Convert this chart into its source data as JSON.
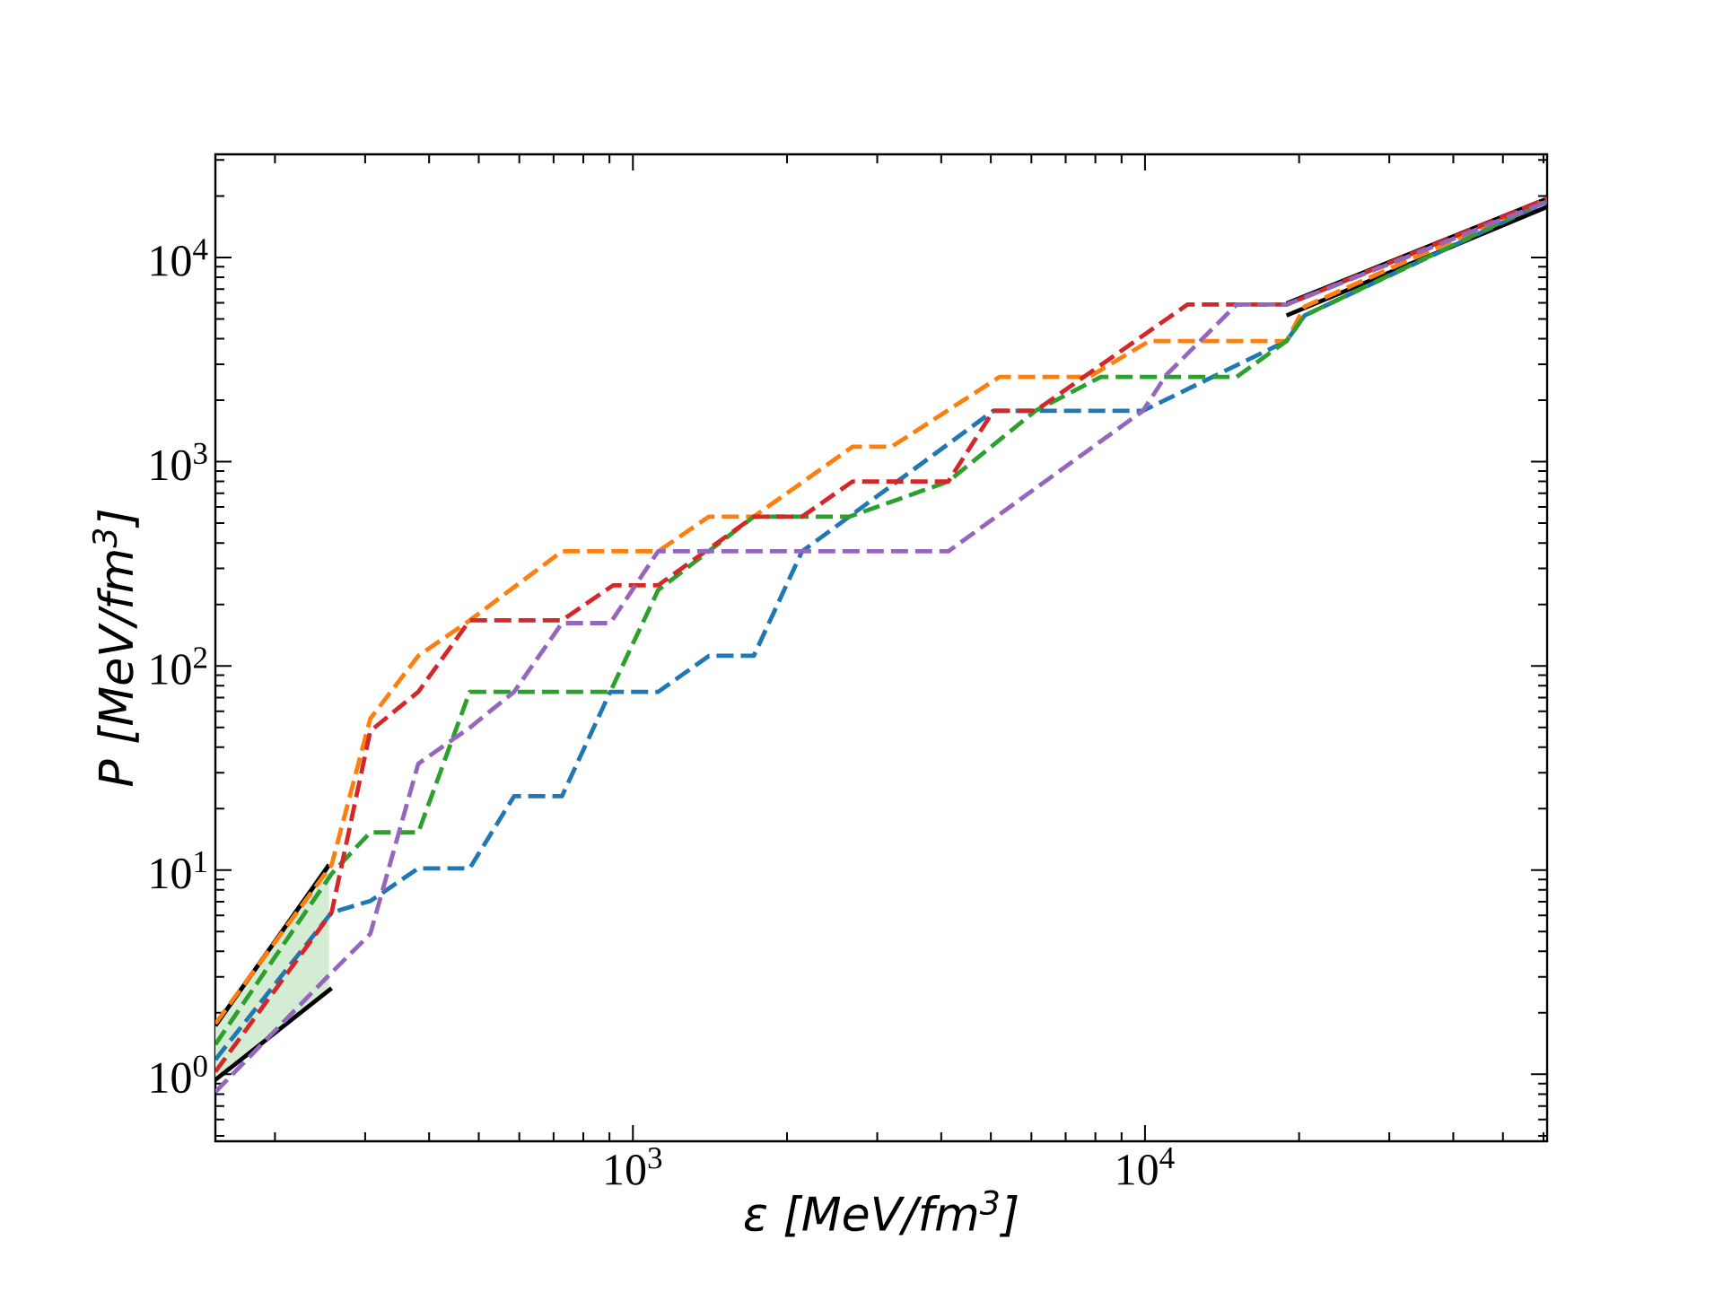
{
  "chart_data": {
    "type": "line",
    "xlabel": "ε [MeV/fm$^{3}$]",
    "ylabel": "P [MeV/fm$^{3}$]",
    "log": "xy",
    "grid": false,
    "marker": "none",
    "xlim": [
      153,
      61000
    ],
    "ylim": [
      0.47,
      32000
    ],
    "xticks": [
      {
        "value": 1000,
        "label": "10$^{3}$"
      },
      {
        "value": 10000,
        "label": "10$^{4}$"
      }
    ],
    "yticks": [
      {
        "value": 1,
        "label": "10$^{0}$"
      },
      {
        "value": 10,
        "label": "10$^{1}$"
      },
      {
        "value": 100,
        "label": "10$^{2}$"
      },
      {
        "value": 1000,
        "label": "10$^{3}$"
      },
      {
        "value": 10000,
        "label": "10$^{4}$"
      }
    ],
    "series": [
      {
        "color": "#000000",
        "line_style": "solid",
        "x": [
          153,
          255,
          1000,
          18900,
          61000
        ],
        "values": [
          1.73,
          10.6,
          null,
          5960,
          19400
        ],
        "lower": [
          0.94,
          2.64,
          null,
          null,
          null
        ],
        "upper": [
          1.73,
          10.6,
          null,
          null,
          null
        ]
      },
      {
        "color": "#000000",
        "line_style": "solid",
        "x": [
          153,
          258,
          1000,
          18900,
          61000
        ],
        "values": [
          0.94,
          2.64,
          null,
          5200,
          17700
        ]
      },
      {
        "color": "#1f77b4",
        "line_style": "dashed",
        "x": [
          153,
          258,
          307,
          381,
          480,
          586,
          727,
          903,
          1120,
          1408,
          1722,
          2140,
          5060,
          9910,
          18900,
          20500,
          61000
        ],
        "values": [
          1.18,
          6.2,
          7.06,
          10.2,
          10.2,
          23,
          23,
          74.6,
          74.6,
          112,
          112,
          364,
          1775,
          1775,
          3900,
          5200,
          18800
        ]
      },
      {
        "color": "#ff7f0e",
        "line_style": "dashed",
        "x": [
          153,
          258,
          307,
          381,
          480,
          727,
          1120,
          1408,
          1722,
          2685,
          3200,
          5200,
          7780,
          10200,
          18900,
          20500,
          61000
        ],
        "values": [
          1.77,
          10.6,
          55.1,
          112,
          167,
          364,
          364,
          538,
          538,
          1183,
          1183,
          2600,
          2600,
          3900,
          3900,
          5750,
          19400
        ]
      },
      {
        "color": "#2ca02c",
        "line_style": "dashed",
        "x": [
          153,
          258,
          307,
          381,
          480,
          903,
          1120,
          1722,
          2650,
          4130,
          6110,
          8200,
          15100,
          18900,
          20500,
          61000
        ],
        "values": [
          1.4,
          9.6,
          15.3,
          15.3,
          74.6,
          74.6,
          235,
          538,
          538,
          800,
          1775,
          2600,
          2600,
          3900,
          5200,
          19000
        ]
      },
      {
        "color": "#d62728",
        "line_style": "dashed",
        "x": [
          153,
          258,
          307,
          381,
          480,
          727,
          915,
          1120,
          1722,
          2140,
          2685,
          4130,
          5060,
          6110,
          12100,
          18900,
          61000
        ],
        "values": [
          1.03,
          6.2,
          48,
          74.6,
          167,
          167,
          248,
          248,
          538,
          538,
          800,
          800,
          1775,
          1775,
          5880,
          5880,
          19400
        ]
      },
      {
        "color": "#9467bd",
        "line_style": "dashed",
        "x": [
          153,
          258,
          307,
          381,
          480,
          586,
          727,
          903,
          1120,
          4130,
          9910,
          11000,
          15100,
          18900,
          61000
        ],
        "values": [
          0.82,
          3.15,
          4.87,
          33.2,
          49.8,
          74.6,
          162,
          162,
          364,
          364,
          1775,
          2655,
          5880,
          5880,
          18750
        ]
      }
    ]
  }
}
